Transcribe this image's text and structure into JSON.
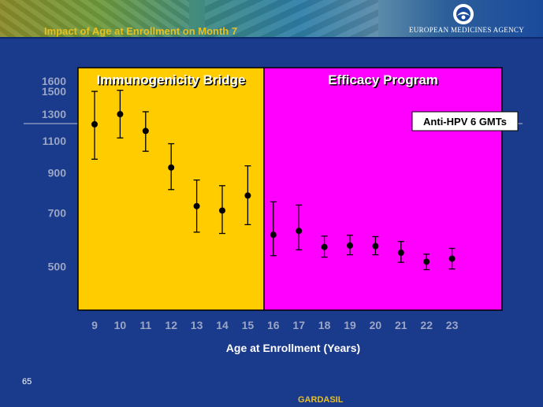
{
  "slide": {
    "title": "Impact of Age at Enrollment on Month 7",
    "agency": "EUROPEAN MEDICINES AGENCY",
    "page_number": "65",
    "footer": "GARDASIL"
  },
  "colors": {
    "background": "#1a3a8c",
    "bridge_region": "#ffcc00",
    "efficacy_region": "#ff00ff",
    "axis_text": "#9aa6c4",
    "title_text": "#e8c020"
  },
  "chart_data": {
    "type": "scatter",
    "title": "",
    "annotation": "Anti-HPV 6 GMTs",
    "xlabel": "Age at Enrollment (Years)",
    "ylabel": "",
    "yscale": "log",
    "ylim": [
      380,
      1600
    ],
    "yticks": [
      "1600",
      "1500",
      "1300",
      "1100",
      "900",
      "700",
      "500"
    ],
    "regions": [
      {
        "label": "Immunogenicity Bridge",
        "x_from": 9,
        "x_to": 15,
        "color": "#ffcc00"
      },
      {
        "label": "Efficacy Program",
        "x_from": 16,
        "x_to": 23,
        "color": "#ff00ff"
      }
    ],
    "x": [
      9,
      10,
      11,
      12,
      13,
      14,
      15,
      16,
      17,
      18,
      19,
      20,
      21,
      22,
      23
    ],
    "x_tick_labels": [
      "9",
      "10",
      "11",
      "12",
      "13",
      "14",
      "15",
      "16",
      "17",
      "18",
      "19",
      "20",
      "21",
      "22",
      "23"
    ],
    "gmt": [
      1220,
      1300,
      1170,
      930,
      730,
      710,
      780,
      610,
      625,
      565,
      570,
      568,
      545,
      515,
      525
    ],
    "ci_lower": [
      980,
      1120,
      1030,
      810,
      620,
      615,
      650,
      535,
      555,
      530,
      538,
      538,
      513,
      490,
      492
    ],
    "ci_upper": [
      1500,
      1510,
      1320,
      1080,
      860,
      830,
      940,
      750,
      735,
      605,
      608,
      603,
      585,
      540,
      560
    ]
  }
}
